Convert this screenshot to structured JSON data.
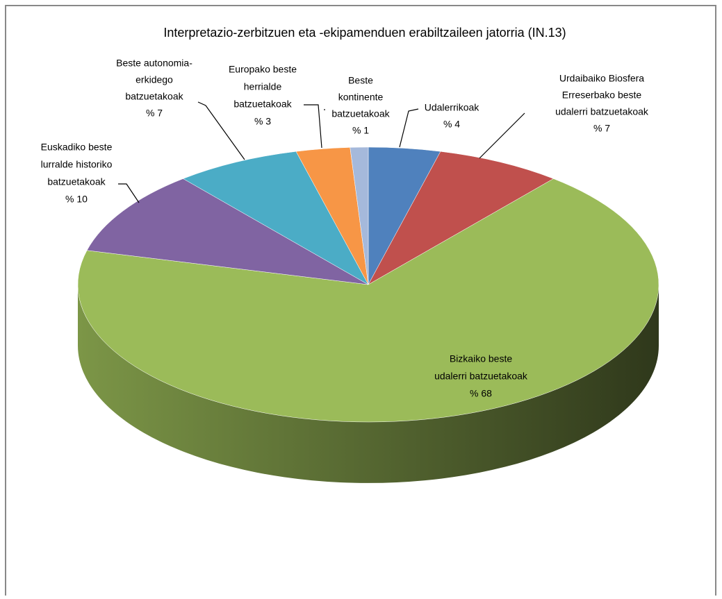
{
  "chart_data": {
    "type": "pie3d",
    "title": "Interpretazio-zerbitzuen eta -ekipamenduen erabiltzaileen jatorria  (IN.13)",
    "categories": [
      [
        "Udalerrikoak"
      ],
      [
        "Urdaibaiko Biosfera",
        "Erreserbako beste",
        "udalerri batzuetakoak"
      ],
      [
        "Bizkaiko beste",
        "udalerri batzuetakoak"
      ],
      [
        "Euskadiko beste",
        "lurralde historiko",
        "batzuetakoak"
      ],
      [
        "Beste autonomia-",
        "erkidego",
        "batzuetakoak"
      ],
      [
        "Europako beste",
        "herrialde",
        "batzuetakoak"
      ],
      [
        "Beste",
        "kontinente",
        "batzuetakoak"
      ]
    ],
    "values": [
      4,
      7,
      68,
      10,
      7,
      3,
      1
    ],
    "value_labels": [
      "% 4",
      "% 7",
      "% 68",
      "% 10",
      "% 7",
      "% 3",
      "% 1"
    ],
    "colors": [
      "#4f81bd",
      "#c0504d",
      "#9bbb59",
      "#8064a2",
      "#4bacc6",
      "#f79646",
      "#a5b9db"
    ]
  }
}
